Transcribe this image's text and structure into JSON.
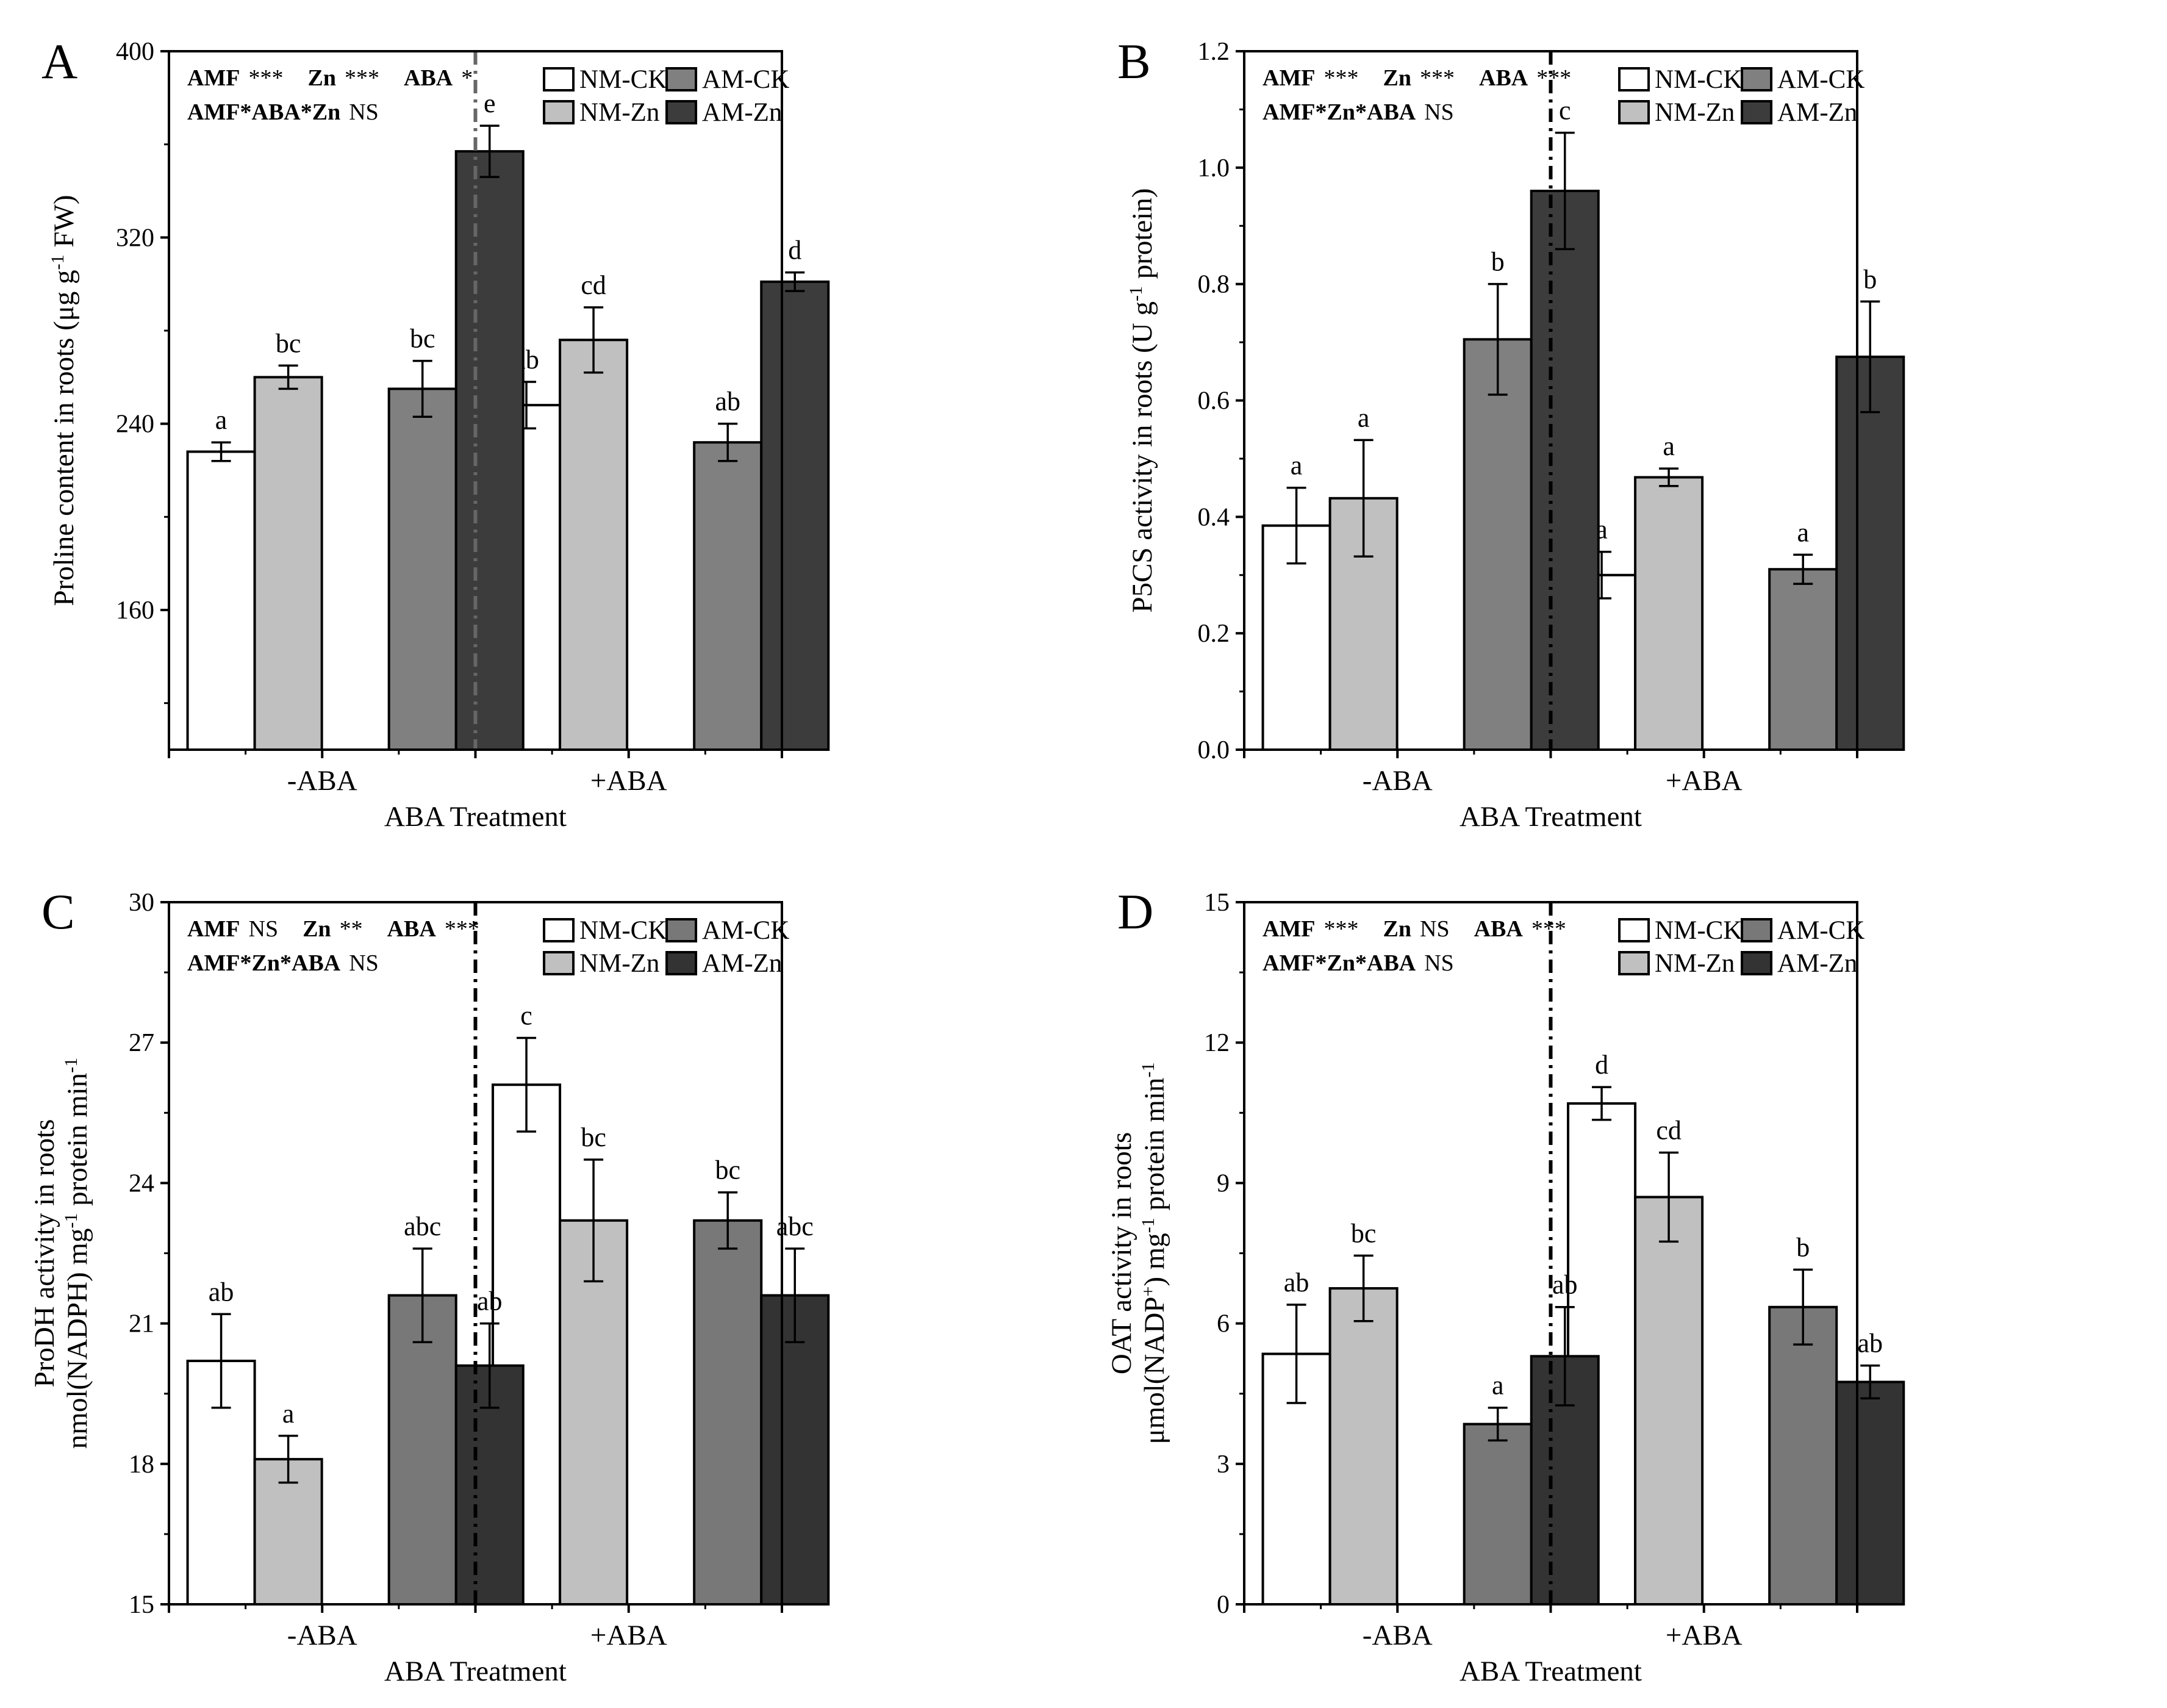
{
  "chart_data": [
    {
      "id": "A",
      "type": "bar",
      "panel_label": "A",
      "ylabel": "Proline content in roots (μg g⁻¹ FW)",
      "ylabel_lines": [
        "Proline content in roots (μg g",
        "-1",
        " FW)"
      ],
      "xlabel": "ABA Treatment",
      "ylim": [
        100,
        400
      ],
      "yticks": [
        160,
        240,
        320,
        400
      ],
      "ytick_labels": [
        "160",
        "240",
        "320",
        "400"
      ],
      "groups": [
        "-ABA",
        "+ABA"
      ],
      "series": [
        {
          "name": "NM-CK",
          "color": "#ffffff",
          "values": [
            228,
            248
          ],
          "errors": [
            4,
            10
          ],
          "letters": [
            "a",
            "ab"
          ]
        },
        {
          "name": "NM-Zn",
          "color": "#c0c0c0",
          "values": [
            260,
            276
          ],
          "errors": [
            5,
            14
          ],
          "letters": [
            "bc",
            "cd"
          ]
        },
        {
          "name": "AM-CK",
          "color": "#808080",
          "values": [
            255,
            232
          ],
          "errors": [
            12,
            8
          ],
          "letters": [
            "bc",
            "ab"
          ]
        },
        {
          "name": "AM-Zn",
          "color": "#3c3c3c",
          "values": [
            357,
            301
          ],
          "errors": [
            11,
            4
          ],
          "letters": [
            "e",
            "d"
          ]
        }
      ],
      "stats": {
        "line1": [
          {
            "label": "AMF",
            "value": "***"
          },
          {
            "label": "Zn",
            "value": "***"
          },
          {
            "label": "ABA",
            "value": "*"
          }
        ],
        "line2": {
          "label": "AMF*ABA*Zn",
          "value": "NS"
        }
      },
      "divider_style": "dash-dot",
      "legend_position": "top-right"
    },
    {
      "id": "B",
      "type": "bar",
      "panel_label": "B",
      "ylabel": "P5CS activity in roots (U g⁻¹ protein)",
      "ylabel_lines": [
        "P5CS activity in roots (U g",
        "-1",
        " protein)"
      ],
      "xlabel": "ABA Treatment",
      "ylim": [
        0,
        1.2
      ],
      "yticks": [
        0,
        0.2,
        0.4,
        0.6,
        0.8,
        1.0,
        1.2
      ],
      "ytick_labels": [
        "0.0",
        "0.2",
        "0.4",
        "0.6",
        "0.8",
        "1.0",
        "1.2"
      ],
      "groups": [
        "-ABA",
        "+ABA"
      ],
      "series": [
        {
          "name": "NM-CK",
          "color": "#ffffff",
          "values": [
            0.385,
            0.3
          ],
          "errors": [
            0.065,
            0.04
          ],
          "letters": [
            "a",
            "a"
          ]
        },
        {
          "name": "NM-Zn",
          "color": "#c0c0c0",
          "values": [
            0.432,
            0.468
          ],
          "errors": [
            0.1,
            0.015
          ],
          "letters": [
            "a",
            "a"
          ]
        },
        {
          "name": "AM-CK",
          "color": "#808080",
          "values": [
            0.705,
            0.31
          ],
          "errors": [
            0.095,
            0.025
          ],
          "letters": [
            "b",
            "a"
          ]
        },
        {
          "name": "AM-Zn",
          "color": "#3c3c3c",
          "values": [
            0.96,
            0.675
          ],
          "errors": [
            0.1,
            0.095
          ],
          "letters": [
            "c",
            "b"
          ]
        }
      ],
      "stats": {
        "line1": [
          {
            "label": "AMF",
            "value": "***"
          },
          {
            "label": "Zn",
            "value": "***"
          },
          {
            "label": "ABA",
            "value": "***"
          }
        ],
        "line2": {
          "label": "AMF*Zn*ABA",
          "value": "NS"
        }
      },
      "divider_style": "dash-dot",
      "legend_position": "top-right"
    },
    {
      "id": "C",
      "type": "bar",
      "panel_label": "C",
      "ylabel": "ProDH activity in roots nmol(NADPH) mg⁻¹ protein min⁻¹",
      "ylabel_lines": [
        "ProDH activity in roots",
        "nmol(NADPH) mg",
        "-1",
        " protein min",
        "-1"
      ],
      "xlabel": "ABA Treatment",
      "ylim": [
        15,
        30
      ],
      "yticks": [
        15,
        18,
        21,
        24,
        27,
        30
      ],
      "ytick_labels": [
        "15",
        "18",
        "21",
        "24",
        "27",
        "30"
      ],
      "groups": [
        "-ABA",
        "+ABA"
      ],
      "series": [
        {
          "name": "NM-CK",
          "color": "#ffffff",
          "values": [
            20.2,
            26.1
          ],
          "errors": [
            1.0,
            1.0
          ],
          "letters": [
            "ab",
            "c"
          ]
        },
        {
          "name": "NM-Zn",
          "color": "#c0c0c0",
          "values": [
            18.1,
            23.2
          ],
          "errors": [
            0.5,
            1.3
          ],
          "letters": [
            "a",
            "bc"
          ]
        },
        {
          "name": "AM-CK",
          "color": "#787878",
          "values": [
            21.6,
            23.2
          ],
          "errors": [
            1.0,
            0.6
          ],
          "letters": [
            "abc",
            "bc"
          ]
        },
        {
          "name": "AM-Zn",
          "color": "#333333",
          "values": [
            20.1,
            21.6
          ],
          "errors": [
            0.9,
            1.0
          ],
          "letters": [
            "ab",
            "abc"
          ]
        }
      ],
      "stats": {
        "line1": [
          {
            "label": "AMF",
            "value": "NS"
          },
          {
            "label": "Zn",
            "value": "**"
          },
          {
            "label": "ABA",
            "value": "***"
          }
        ],
        "line2": {
          "label": "AMF*Zn*ABA",
          "value": "NS"
        }
      },
      "divider_style": "dash-dot",
      "legend_position": "top-right"
    },
    {
      "id": "D",
      "type": "bar",
      "panel_label": "D",
      "ylabel": "OAT activity in roots μmol(NADP⁺) mg⁻¹ protein min⁻¹",
      "ylabel_lines": [
        "OAT activity in roots",
        "μmol(NADP",
        "+",
        ") mg",
        "-1",
        " protein min",
        "-1"
      ],
      "xlabel": "ABA Treatment",
      "ylim": [
        0,
        15
      ],
      "yticks": [
        0,
        3,
        6,
        9,
        12,
        15
      ],
      "ytick_labels": [
        "0",
        "3",
        "6",
        "9",
        "12",
        "15"
      ],
      "groups": [
        "-ABA",
        "+ABA"
      ],
      "series": [
        {
          "name": "NM-CK",
          "color": "#ffffff",
          "values": [
            5.35,
            10.7
          ],
          "errors": [
            1.05,
            0.35
          ],
          "letters": [
            "ab",
            "d"
          ]
        },
        {
          "name": "NM-Zn",
          "color": "#c0c0c0",
          "values": [
            6.75,
            8.7
          ],
          "errors": [
            0.7,
            0.95
          ],
          "letters": [
            "bc",
            "cd"
          ]
        },
        {
          "name": "AM-CK",
          "color": "#787878",
          "values": [
            3.85,
            6.35
          ],
          "errors": [
            0.35,
            0.8
          ],
          "letters": [
            "a",
            "b"
          ]
        },
        {
          "name": "AM-Zn",
          "color": "#333333",
          "values": [
            5.3,
            4.75
          ],
          "errors": [
            1.05,
            0.35
          ],
          "letters": [
            "ab",
            "ab"
          ]
        }
      ],
      "stats": {
        "line1": [
          {
            "label": "AMF",
            "value": "***"
          },
          {
            "label": "Zn",
            "value": "NS"
          },
          {
            "label": "ABA",
            "value": "***"
          }
        ],
        "line2": {
          "label": "AMF*Zn*ABA",
          "value": "NS"
        }
      },
      "divider_style": "dash-dot",
      "legend_position": "top-right"
    }
  ]
}
